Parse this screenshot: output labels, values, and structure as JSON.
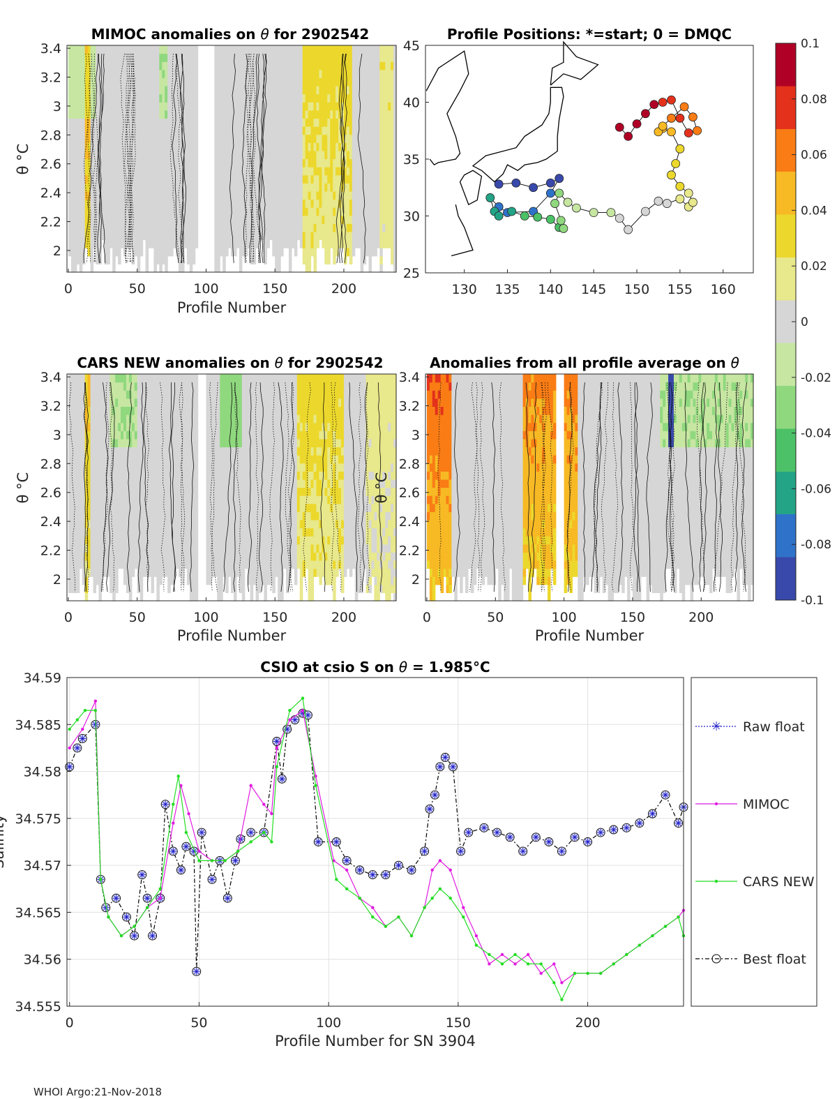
{
  "footer": "WHOI Argo:21-Nov-2018",
  "colorbar": {
    "ticks": [
      "0.1",
      "0.08",
      "0.06",
      "0.04",
      "0.02",
      "0",
      "-0.02",
      "-0.04",
      "-0.06",
      "-0.08",
      "-0.1"
    ],
    "colors": [
      "#b10026",
      "#e3311c",
      "#f97c15",
      "#f7b924",
      "#ecd82c",
      "#e8e88c",
      "#d6d6d6",
      "#c6e6a2",
      "#8fd87e",
      "#4cc167",
      "#23a487",
      "#2f72c9",
      "#3949ab"
    ]
  },
  "chart_data": [
    {
      "id": "mimoc",
      "type": "heatmap",
      "title_pre": "MIMOC anomalies on ",
      "title_sym": "θ",
      "title_post": " for 2902542",
      "xlabel": "Profile Number",
      "ylabel": "θ °C",
      "xlim": [
        -1,
        238
      ],
      "ylim": [
        1.85,
        3.42
      ],
      "xticks": [
        0,
        50,
        100,
        150,
        200
      ],
      "yticks": [
        2,
        2.2,
        2.4,
        2.6,
        2.8,
        3,
        3.2,
        3.4
      ],
      "gaps": [
        [
          93,
          106
        ]
      ],
      "warm_bands": [
        [
          12,
          16,
          0.05
        ],
        [
          170,
          205,
          0.03
        ],
        [
          225,
          235,
          0.02
        ]
      ],
      "cool_bands": [
        [
          0,
          20,
          -0.015
        ],
        [
          65,
          72,
          -0.02
        ]
      ]
    },
    {
      "id": "cars",
      "type": "heatmap",
      "title_pre": "CARS NEW anomalies on ",
      "title_sym": "θ",
      "title_post": " for 2902542",
      "xlabel": "Profile Number",
      "ylabel": "θ °C",
      "xlim": [
        -1,
        238
      ],
      "ylim": [
        1.85,
        3.42
      ],
      "xticks": [
        0,
        50,
        100,
        150,
        200
      ],
      "yticks": [
        2,
        2.2,
        2.4,
        2.6,
        2.8,
        3,
        3.2,
        3.4
      ],
      "gaps": [
        [
          93,
          100
        ]
      ],
      "warm_bands": [
        [
          12,
          16,
          0.04
        ],
        [
          165,
          200,
          0.03
        ],
        [
          215,
          238,
          0.015
        ]
      ],
      "cool_bands": [
        [
          30,
          50,
          -0.02
        ],
        [
          110,
          125,
          -0.03
        ]
      ]
    },
    {
      "id": "avg",
      "type": "heatmap",
      "title_pre": "Anomalies from all profile average on ",
      "title_sym": "θ",
      "title_post": "",
      "xlabel": "Profile Number",
      "ylabel": "θ °C",
      "xlim": [
        -1,
        238
      ],
      "ylim": [
        1.85,
        3.42
      ],
      "xticks": [
        0,
        50,
        100,
        150,
        200
      ],
      "yticks": [
        2,
        2.2,
        2.4,
        2.6,
        2.8,
        3,
        3.2,
        3.4
      ],
      "gaps": [
        [
          93,
          100
        ]
      ],
      "warm_bands": [
        [
          0,
          18,
          0.07
        ],
        [
          70,
          110,
          0.06
        ]
      ],
      "cool_bands": [
        [
          170,
          238,
          -0.02
        ],
        [
          176,
          180,
          -0.07
        ]
      ]
    },
    {
      "id": "positions",
      "type": "scatter",
      "title": "Profile Positions: *=start; 0 = DMQC",
      "xlim": [
        125.5,
        163.5
      ],
      "ylim": [
        25,
        45
      ],
      "xticks": [
        130,
        135,
        140,
        145,
        150,
        155,
        160
      ],
      "yticks": [
        25,
        30,
        35,
        40,
        45
      ],
      "track_lon": [
        134,
        136,
        138,
        140,
        141,
        140,
        138,
        135,
        134,
        133,
        133.5,
        134,
        135.5,
        137,
        138.5,
        140,
        141,
        141.5,
        141.2,
        140.5,
        141,
        142,
        143,
        145,
        147,
        148,
        149,
        151,
        152.5,
        153.5,
        155,
        156,
        156.5,
        156,
        155,
        154,
        154.5,
        155,
        154,
        153,
        152.5,
        153,
        154,
        155.5,
        156.5,
        157,
        156,
        155,
        154,
        153,
        152,
        151,
        150,
        149,
        148
      ],
      "track_lat": [
        32.8,
        32.9,
        32.5,
        32.9,
        33.3,
        32.0,
        30.4,
        30.3,
        30.8,
        31.6,
        30.4,
        30.0,
        30.4,
        30.0,
        29.9,
        29.7,
        29.0,
        28.9,
        29.6,
        31.1,
        32.0,
        31.2,
        30.7,
        30.3,
        30.3,
        29.8,
        28.8,
        30.4,
        31.3,
        31.1,
        31.5,
        30.8,
        31.2,
        32.0,
        32.6,
        33.6,
        34.6,
        35.9,
        37.4,
        37.7,
        37.4,
        37.9,
        38.6,
        39.6,
        38.7,
        37.5,
        37.3,
        38.6,
        40.2,
        40.0,
        39.8,
        39.0,
        38.1,
        37.0,
        37.8
      ]
    },
    {
      "id": "csio",
      "type": "line",
      "title_pre": "CSIO at csio S on ",
      "title_sym": "θ",
      "title_post": " = 1.985°C",
      "xlabel": "Profile Number for SN 3904",
      "ylabel": "Salinity",
      "xlim": [
        -1,
        237
      ],
      "ylim": [
        34.555,
        34.59
      ],
      "xticks": [
        0,
        50,
        100,
        150,
        200
      ],
      "yticks": [
        34.555,
        34.56,
        34.565,
        34.57,
        34.575,
        34.58,
        34.585,
        34.59
      ],
      "legend": [
        "Raw float",
        "MIMOC",
        "CARS NEW",
        "Best float"
      ],
      "series": [
        {
          "name": "Best float",
          "x": [
            0,
            3,
            5,
            10,
            12,
            14,
            18,
            22,
            25,
            28,
            30,
            32,
            35,
            37,
            40,
            43,
            45,
            48,
            49,
            51,
            55,
            58,
            61,
            64,
            66,
            70,
            75,
            80,
            82,
            84,
            87,
            90,
            92,
            96,
            103,
            107,
            112,
            117,
            122,
            127,
            132,
            137,
            139,
            141,
            143,
            145,
            148,
            151,
            154,
            160,
            165,
            170,
            175,
            180,
            185,
            190,
            195,
            200,
            205,
            210,
            215,
            220,
            225,
            230,
            235,
            237
          ],
          "y": [
            34.5805,
            34.5825,
            34.5835,
            34.585,
            34.5685,
            34.5655,
            34.5665,
            34.5645,
            34.5625,
            34.569,
            34.5665,
            34.5625,
            34.5665,
            34.5765,
            34.5715,
            34.5695,
            34.572,
            34.5715,
            34.5587,
            34.5735,
            34.5685,
            34.5705,
            34.5665,
            34.5705,
            34.5728,
            34.5735,
            34.5735,
            34.5832,
            34.5792,
            34.5845,
            34.5855,
            34.5862,
            34.586,
            34.5725,
            34.5725,
            34.5705,
            34.5695,
            34.569,
            34.569,
            34.57,
            34.5695,
            34.5715,
            34.576,
            34.5775,
            34.5805,
            34.5815,
            34.5805,
            34.5715,
            34.5735,
            34.574,
            34.5735,
            34.573,
            34.5715,
            34.573,
            34.5725,
            34.5715,
            34.573,
            34.5725,
            34.5735,
            34.5738,
            34.574,
            34.5745,
            34.5755,
            34.5775,
            34.5745,
            34.5762
          ]
        },
        {
          "name": "MIMOC",
          "x": [
            0,
            5,
            10,
            12,
            15,
            20,
            25,
            30,
            35,
            40,
            43,
            46,
            50,
            55,
            60,
            65,
            70,
            75,
            78,
            80,
            85,
            90,
            95,
            102,
            107,
            112,
            117,
            122,
            127,
            132,
            137,
            140,
            143,
            147,
            152,
            157,
            162,
            167,
            172,
            177,
            182,
            187,
            190,
            195,
            200,
            205,
            210,
            215,
            220,
            225,
            230,
            235,
            237
          ],
          "y": [
            34.5825,
            34.5845,
            34.5875,
            34.5685,
            34.5645,
            34.5625,
            34.5635,
            34.5655,
            34.5665,
            34.5745,
            34.5785,
            34.5755,
            34.5715,
            34.5705,
            34.5705,
            34.5715,
            34.5785,
            34.5765,
            34.5755,
            34.5825,
            34.5855,
            34.5865,
            34.5795,
            34.5705,
            34.5695,
            34.5665,
            34.5655,
            34.5635,
            34.5645,
            34.5625,
            34.5655,
            34.5695,
            34.5705,
            34.5695,
            34.5655,
            34.5625,
            34.5595,
            34.5605,
            34.5595,
            34.5605,
            34.5585,
            34.5595,
            34.5575,
            34.5585,
            34.5585,
            34.5585,
            34.5595,
            34.5605,
            34.5615,
            34.5625,
            34.5635,
            34.5645,
            34.5652
          ]
        },
        {
          "name": "CARS NEW",
          "x": [
            0,
            3,
            6,
            10,
            12,
            15,
            20,
            25,
            30,
            35,
            40,
            42,
            45,
            50,
            55,
            60,
            65,
            70,
            75,
            78,
            80,
            85,
            90,
            95,
            103,
            107,
            112,
            117,
            122,
            127,
            132,
            137,
            140,
            143,
            147,
            152,
            157,
            162,
            167,
            172,
            177,
            182,
            187,
            190,
            195,
            200,
            205,
            210,
            215,
            220,
            225,
            230,
            235,
            237
          ],
          "y": [
            34.5845,
            34.5855,
            34.5865,
            34.5865,
            34.5685,
            34.5645,
            34.5625,
            34.5635,
            34.5655,
            34.5675,
            34.5765,
            34.5795,
            34.5735,
            34.5705,
            34.5705,
            34.5705,
            34.5715,
            34.5725,
            34.5735,
            34.5725,
            34.5805,
            34.5865,
            34.5878,
            34.5785,
            34.5685,
            34.5675,
            34.5665,
            34.5645,
            34.5635,
            34.5645,
            34.5625,
            34.5655,
            34.5665,
            34.5675,
            34.5665,
            34.5645,
            34.5615,
            34.5605,
            34.5595,
            34.5605,
            34.5595,
            34.5595,
            34.5575,
            34.5557,
            34.5585,
            34.5585,
            34.5585,
            34.5595,
            34.5605,
            34.5615,
            34.5625,
            34.5635,
            34.5645,
            34.5625
          ]
        }
      ]
    }
  ]
}
